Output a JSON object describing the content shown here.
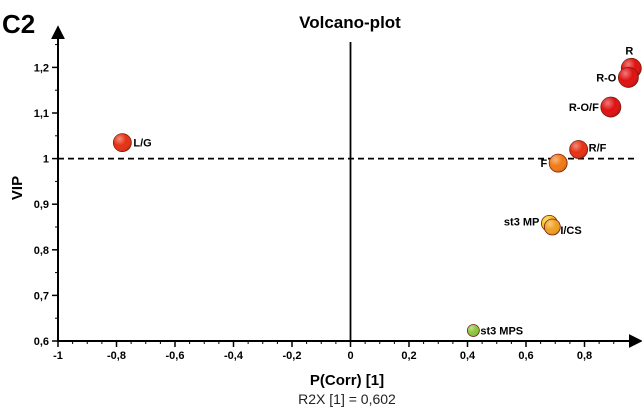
{
  "panel_label": "C2",
  "chart_data": {
    "type": "scatter",
    "title": "Volcano-plot",
    "xlabel": "P(Corr) [1]",
    "ylabel": "VIP",
    "subtitle": "R2X [1] = 0,602",
    "xlim": [
      -1,
      0.95
    ],
    "ylim": [
      0.6,
      1.25
    ],
    "x_ticks": [
      -1,
      -0.8,
      -0.6,
      -0.4,
      -0.2,
      0,
      0.2,
      0.4,
      0.6,
      0.8
    ],
    "x_tick_labels": [
      "-1",
      "-0,8",
      "-0,6",
      "-0,4",
      "-0,2",
      "0",
      "0,2",
      "0,4",
      "0,6",
      "0,8"
    ],
    "y_ticks": [
      0.6,
      0.7,
      0.8,
      0.9,
      1.0,
      1.1,
      1.2
    ],
    "y_tick_labels": [
      "0,6",
      "0,7",
      "0,8",
      "0,9",
      "1",
      "1,1",
      "1,2"
    ],
    "threshold": {
      "y": 1.0,
      "style": "dashed"
    },
    "grid": false,
    "points": [
      {
        "label": "R",
        "x": 0.96,
        "y": 1.198,
        "color": "#e01010"
      },
      {
        "label": "R-O",
        "x": 0.95,
        "y": 1.178,
        "color": "#e01010"
      },
      {
        "label": "R-O/F",
        "x": 0.89,
        "y": 1.113,
        "color": "#e01010"
      },
      {
        "label": "L/G",
        "x": -0.78,
        "y": 1.035,
        "color": "#e63012"
      },
      {
        "label": "R/F",
        "x": 0.78,
        "y": 1.02,
        "color": "#e63012"
      },
      {
        "label": "F",
        "x": 0.71,
        "y": 0.99,
        "color": "#f07a14"
      },
      {
        "label": "st3 MP",
        "x": 0.68,
        "y": 0.858,
        "color": "#f5c518"
      },
      {
        "label": "I/CS",
        "x": 0.69,
        "y": 0.85,
        "color": "#f0a020"
      },
      {
        "label": "st3 MPS",
        "x": 0.42,
        "y": 0.623,
        "color": "#8cc63f"
      }
    ]
  }
}
